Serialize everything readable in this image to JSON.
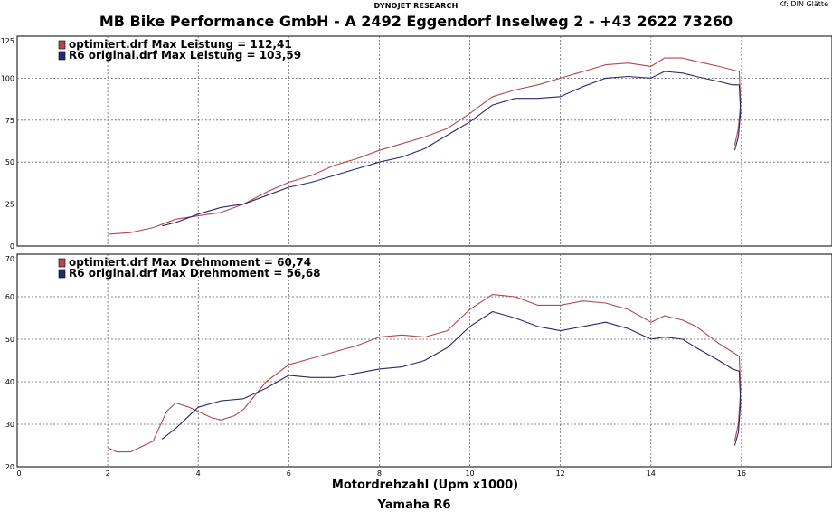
{
  "header": {
    "top_label": "DYNOJET RESEARCH",
    "right_label": "Kf: DIN  Glätte",
    "title": "MB Bike Performance GmbH - A 2492 Eggendorf Inselweg 2 - +43 2622 73260"
  },
  "footer": {
    "x_axis_label": "Motordrehzahl (Upm x1000)",
    "subtitle": "Yamaha R6"
  },
  "colors": {
    "optimiert": "#b2474f",
    "original": "#28286e"
  },
  "chart_data": [
    {
      "type": "line",
      "xlim": [
        0,
        18
      ],
      "ylim": [
        0,
        125
      ],
      "x_ticks": [
        0,
        2,
        4,
        6,
        8,
        10,
        12,
        14,
        16,
        18
      ],
      "y_ticks": [
        0,
        25,
        50,
        75,
        100,
        125
      ],
      "x_tick_labels": [
        "0",
        "2",
        "4",
        "6",
        "8",
        "10",
        "12",
        "14",
        "16",
        ""
      ],
      "grid": true,
      "legend_position": "top-left",
      "series": [
        {
          "name": "optimiert.drf Max Leistung = 112,41",
          "color": "#b2474f",
          "x": [
            2.0,
            2.5,
            3.0,
            3.5,
            4.0,
            4.5,
            5.0,
            5.5,
            6.0,
            6.5,
            7.0,
            7.5,
            8.0,
            8.5,
            9.0,
            9.5,
            10.0,
            10.5,
            11.0,
            11.5,
            12.0,
            12.5,
            13.0,
            13.5,
            14.0,
            14.3,
            14.7,
            15.0,
            15.5,
            15.8,
            15.95,
            15.98,
            15.93,
            15.85
          ],
          "y": [
            7,
            8,
            11,
            16,
            18,
            20,
            25,
            32,
            38,
            42,
            48,
            52,
            57,
            61,
            65,
            70,
            79,
            89,
            93,
            96,
            100,
            104,
            108,
            109,
            107,
            112,
            112,
            110,
            107,
            105,
            104,
            85,
            70,
            60
          ]
        },
        {
          "name": "R6 original.drf Max Leistung = 103,59",
          "color": "#28286e",
          "x": [
            3.2,
            3.5,
            4.0,
            4.5,
            5.0,
            5.5,
            6.0,
            6.5,
            7.0,
            7.5,
            8.0,
            8.5,
            9.0,
            9.5,
            10.0,
            10.5,
            11.0,
            11.5,
            12.0,
            12.5,
            13.0,
            13.5,
            14.0,
            14.3,
            14.7,
            15.0,
            15.5,
            15.8,
            15.95,
            15.98,
            15.93,
            15.85
          ],
          "y": [
            12,
            14,
            19,
            23,
            25,
            30,
            35,
            38,
            42,
            46,
            50,
            53,
            58,
            66,
            74,
            84,
            88,
            88,
            89,
            95,
            100,
            101,
            100,
            104,
            103,
            101,
            98,
            96,
            96,
            80,
            65,
            57
          ]
        }
      ]
    },
    {
      "type": "line",
      "xlim": [
        0,
        18
      ],
      "ylim": [
        20,
        70
      ],
      "x_ticks": [
        0,
        2,
        4,
        6,
        8,
        10,
        12,
        14,
        16,
        18
      ],
      "y_ticks": [
        20,
        30,
        40,
        50,
        60,
        70
      ],
      "x_tick_labels": [
        "0",
        "2",
        "4",
        "6",
        "8",
        "10",
        "12",
        "14",
        "16",
        ""
      ],
      "grid": true,
      "legend_position": "top-left",
      "series": [
        {
          "name": "optimiert.drf Max Drehmoment = 60,74",
          "color": "#b2474f",
          "x": [
            2.0,
            2.2,
            2.5,
            3.0,
            3.3,
            3.5,
            3.8,
            4.0,
            4.3,
            4.5,
            4.8,
            5.0,
            5.5,
            6.0,
            6.5,
            7.0,
            7.5,
            8.0,
            8.5,
            9.0,
            9.5,
            10.0,
            10.5,
            11.0,
            11.5,
            12.0,
            12.5,
            13.0,
            13.5,
            14.0,
            14.3,
            14.7,
            15.0,
            15.5,
            15.8,
            15.95,
            15.98,
            15.93,
            15.85
          ],
          "y": [
            24.5,
            23.5,
            23.5,
            26,
            33,
            35,
            34,
            33,
            31.5,
            31,
            32,
            33.5,
            40,
            44,
            45.5,
            47,
            48.5,
            50.5,
            51,
            50.5,
            52,
            57,
            60.5,
            60,
            58,
            58,
            59,
            58.5,
            57,
            54,
            55.5,
            54.5,
            53,
            49,
            47,
            46,
            38,
            30,
            26
          ]
        },
        {
          "name": "R6 original.drf Max Drehmoment = 56,68",
          "color": "#28286e",
          "x": [
            3.2,
            3.5,
            4.0,
            4.5,
            5.0,
            5.5,
            6.0,
            6.5,
            7.0,
            7.5,
            8.0,
            8.5,
            9.0,
            9.5,
            10.0,
            10.5,
            11.0,
            11.5,
            12.0,
            12.5,
            13.0,
            13.5,
            14.0,
            14.3,
            14.7,
            15.0,
            15.5,
            15.8,
            15.95,
            15.98,
            15.93,
            15.85
          ],
          "y": [
            26.5,
            29,
            34,
            35.5,
            36,
            38.5,
            41.5,
            41,
            41,
            42,
            43,
            43.5,
            45,
            48,
            53,
            56.5,
            55,
            53,
            52,
            53,
            54,
            52.5,
            50,
            50.5,
            50,
            48,
            45,
            43,
            42.5,
            35,
            28,
            25
          ]
        }
      ]
    }
  ]
}
